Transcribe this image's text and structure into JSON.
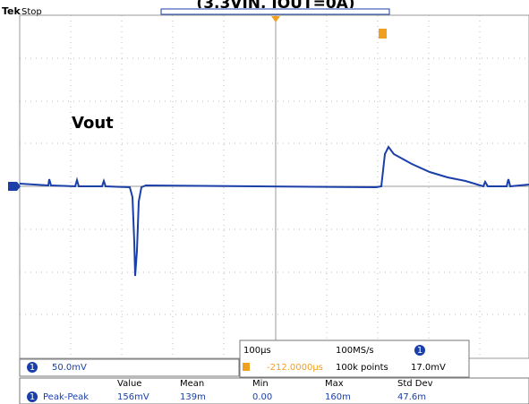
{
  "header": {
    "title": "(3.3VIN, IOUT=0A)",
    "brand": "Tek",
    "status": "Stop"
  },
  "annotation": "Vout",
  "acquisition": {
    "timebase": "100µs",
    "sample_rate": "100MS/s",
    "trigger_level": "17.0mV",
    "position": "-212.0000µs",
    "record_length": "100k points"
  },
  "channel": {
    "number": "1",
    "scale": "50.0mV"
  },
  "measurements": {
    "headers": [
      "Value",
      "Mean",
      "Min",
      "Max",
      "Std Dev"
    ],
    "rows": [
      {
        "name": "Peak-Peak",
        "cells": [
          "156mV",
          "139m",
          "0.00",
          "160m",
          "47.6m"
        ]
      }
    ]
  }
}
